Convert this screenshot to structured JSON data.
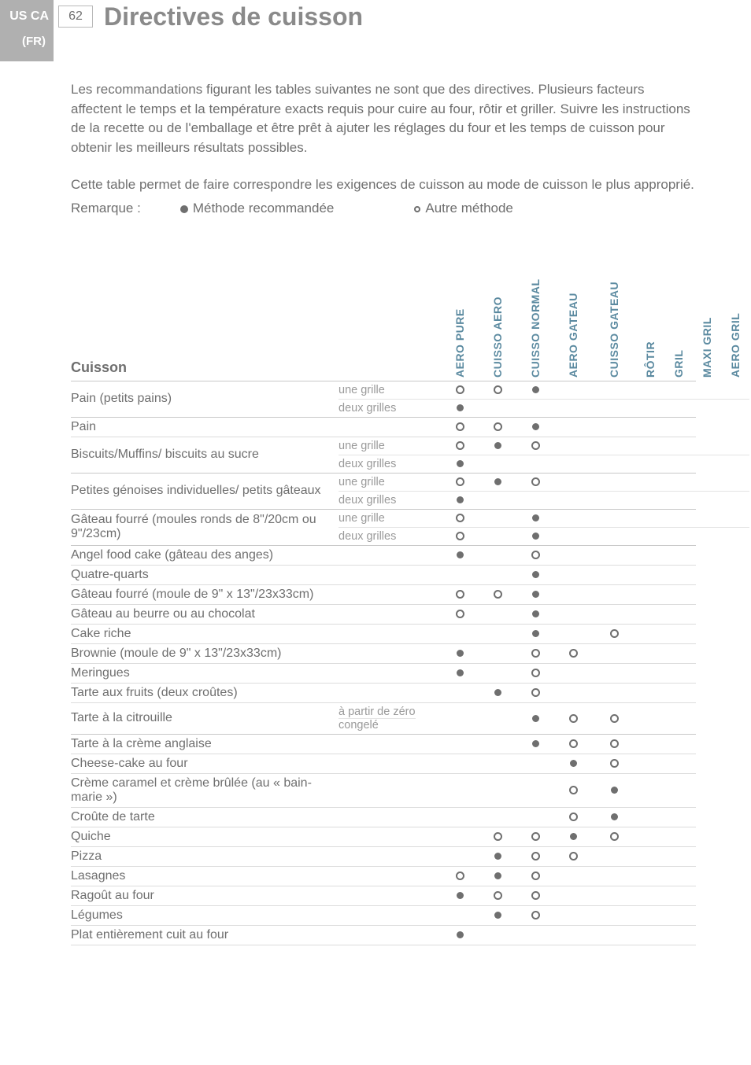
{
  "header": {
    "region_tag": "US CA",
    "lang_tag": "(FR)",
    "page_number": "62",
    "title": "Directives de cuisson"
  },
  "intro": {
    "p1": "Les recommandations figurant les tables suivantes ne sont que des directives. Plusieurs facteurs affectent le temps et la température exacts requis pour cuire au four, rôtir et griller. Suivre les instructions de la recette ou de l'emballage et être prêt à ajuter les réglages du four et les temps de cuisson pour obtenir les meilleurs résultats possibles.",
    "p2a": "Cette table permet de faire correspondre les exigences de cuisson au mode de cuisson le plus approprié.",
    "remarque_label": "Remarque :",
    "legend_recommended": "Méthode recommandée",
    "legend_alternate": "Autre méthode"
  },
  "columns": [
    "AERO PURE",
    "CUISSO AERO",
    "CUISSO NORMAL",
    "AERO GATEAU",
    "CUISSO GATEAU",
    "RÔTIR",
    "GRIL",
    "MAXI GRIL",
    "AERO GRIL"
  ],
  "col_widths": [
    "w48",
    "w48",
    "w48",
    "w48",
    "w56",
    "w36",
    "w36",
    "w36",
    "w36"
  ],
  "section_title": "Cuisson",
  "sub_labels": {
    "une_grille": "une grille",
    "deux_grilles": "deux grilles",
    "a_partir_de_zero": "à partir de zéro",
    "congele": "congelé"
  },
  "rows": [
    {
      "label": "Pain (petits pains)",
      "subrows": [
        {
          "sub": "une_grille",
          "cells": [
            "o",
            "o",
            "f",
            "",
            "",
            "",
            "",
            "",
            ""
          ]
        },
        {
          "sub": "deux_grilles",
          "cells": [
            "f",
            "",
            "",
            "",
            "",
            "",
            "",
            "",
            ""
          ]
        }
      ]
    },
    {
      "label": "Pain",
      "cells": [
        "o",
        "o",
        "f",
        "",
        "",
        "",
        "",
        "",
        ""
      ]
    },
    {
      "label": "Biscuits/Muffins/ biscuits au sucre",
      "subrows": [
        {
          "sub": "une_grille",
          "cells": [
            "o",
            "f",
            "o",
            "",
            "",
            "",
            "",
            "",
            ""
          ]
        },
        {
          "sub": "deux_grilles",
          "cells": [
            "f",
            "",
            "",
            "",
            "",
            "",
            "",
            "",
            ""
          ]
        }
      ]
    },
    {
      "label": "Petites génoises individuelles/ petits gâteaux",
      "subrows": [
        {
          "sub": "une_grille",
          "cells": [
            "o",
            "f",
            "o",
            "",
            "",
            "",
            "",
            "",
            ""
          ]
        },
        {
          "sub": "deux_grilles",
          "cells": [
            "f",
            "",
            "",
            "",
            "",
            "",
            "",
            "",
            ""
          ]
        }
      ]
    },
    {
      "label": "Gâteau fourré (moules ronds de 8\"/20cm ou 9\"/23cm)",
      "subrows": [
        {
          "sub": "une_grille",
          "cells": [
            "o",
            "",
            "f",
            "",
            "",
            "",
            "",
            "",
            ""
          ]
        },
        {
          "sub": "deux_grilles",
          "cells": [
            "o",
            "",
            "f",
            "",
            "",
            "",
            "",
            "",
            ""
          ]
        }
      ]
    },
    {
      "label": "Angel food cake (gâteau des anges)",
      "label_class": "sub",
      "cells": [
        "f",
        "",
        "o",
        "",
        "",
        "",
        "",
        "",
        ""
      ]
    },
    {
      "label": "Quatre-quarts",
      "cells": [
        "",
        "",
        "f",
        "",
        "",
        "",
        "",
        "",
        ""
      ]
    },
    {
      "label": "Gâteau fourré (moule de 9\" x 13\"/23x33cm)",
      "label_class": "sub",
      "cells": [
        "o",
        "o",
        "f",
        "",
        "",
        "",
        "",
        "",
        ""
      ]
    },
    {
      "label": "Gâteau au beurre ou au chocolat",
      "cells": [
        "o",
        "",
        "f",
        "",
        "",
        "",
        "",
        "",
        ""
      ]
    },
    {
      "label": "Cake riche",
      "cells": [
        "",
        "",
        "f",
        "",
        "o",
        "",
        "",
        "",
        ""
      ]
    },
    {
      "label": "Brownie (moule de 9\" x 13\"/23x33cm)",
      "label_class": "sub",
      "cells": [
        "f",
        "",
        "o",
        "o",
        "",
        "",
        "",
        "",
        ""
      ]
    },
    {
      "label": "Meringues",
      "cells": [
        "f",
        "",
        "o",
        "",
        "",
        "",
        "",
        "",
        ""
      ]
    },
    {
      "label": "Tarte aux fruits (deux croûtes)",
      "cells": [
        "",
        "f",
        "o",
        "",
        "",
        "",
        "",
        "",
        ""
      ]
    },
    {
      "label": "Tarte à la citrouille",
      "subrows": [
        {
          "sub": "a_partir_de_zero",
          "border": false,
          "cells_rowspan": true
        },
        {
          "sub": "congele",
          "border": false
        }
      ],
      "cells": [
        "",
        "",
        "f",
        "o",
        "o",
        "",
        "",
        "",
        ""
      ]
    },
    {
      "label": "Tarte à la crème anglaise",
      "cells": [
        "",
        "",
        "f",
        "o",
        "o",
        "",
        "",
        "",
        ""
      ]
    },
    {
      "label": "Cheese-cake au four",
      "cells": [
        "",
        "",
        "",
        "f",
        "o",
        "",
        "",
        "",
        ""
      ]
    },
    {
      "label": "Crème caramel et crème brûlée (au « bain-marie »)",
      "cells": [
        "",
        "",
        "",
        "o",
        "f",
        "",
        "",
        "",
        ""
      ]
    },
    {
      "label": "Croûte de tarte",
      "cells": [
        "",
        "",
        "",
        "o",
        "f",
        "",
        "",
        "",
        ""
      ]
    },
    {
      "label": "Quiche",
      "cells": [
        "",
        "o",
        "o",
        "f",
        "o",
        "",
        "",
        "",
        ""
      ]
    },
    {
      "label": "Pizza",
      "cells": [
        "",
        "f",
        "o",
        "o",
        "",
        "",
        "",
        "",
        ""
      ]
    },
    {
      "label": "Lasagnes",
      "cells": [
        "o",
        "f",
        "o",
        "",
        "",
        "",
        "",
        "",
        ""
      ]
    },
    {
      "label": "Ragoût au four",
      "cells": [
        "f",
        "o",
        "o",
        "",
        "",
        "",
        "",
        "",
        ""
      ]
    },
    {
      "label": "Légumes",
      "cells": [
        "",
        "f",
        "o",
        "",
        "",
        "",
        "",
        "",
        ""
      ]
    },
    {
      "label": "Plat entièrement cuit au four",
      "cells": [
        "f",
        "",
        "",
        "",
        "",
        "",
        "",
        "",
        ""
      ]
    }
  ]
}
